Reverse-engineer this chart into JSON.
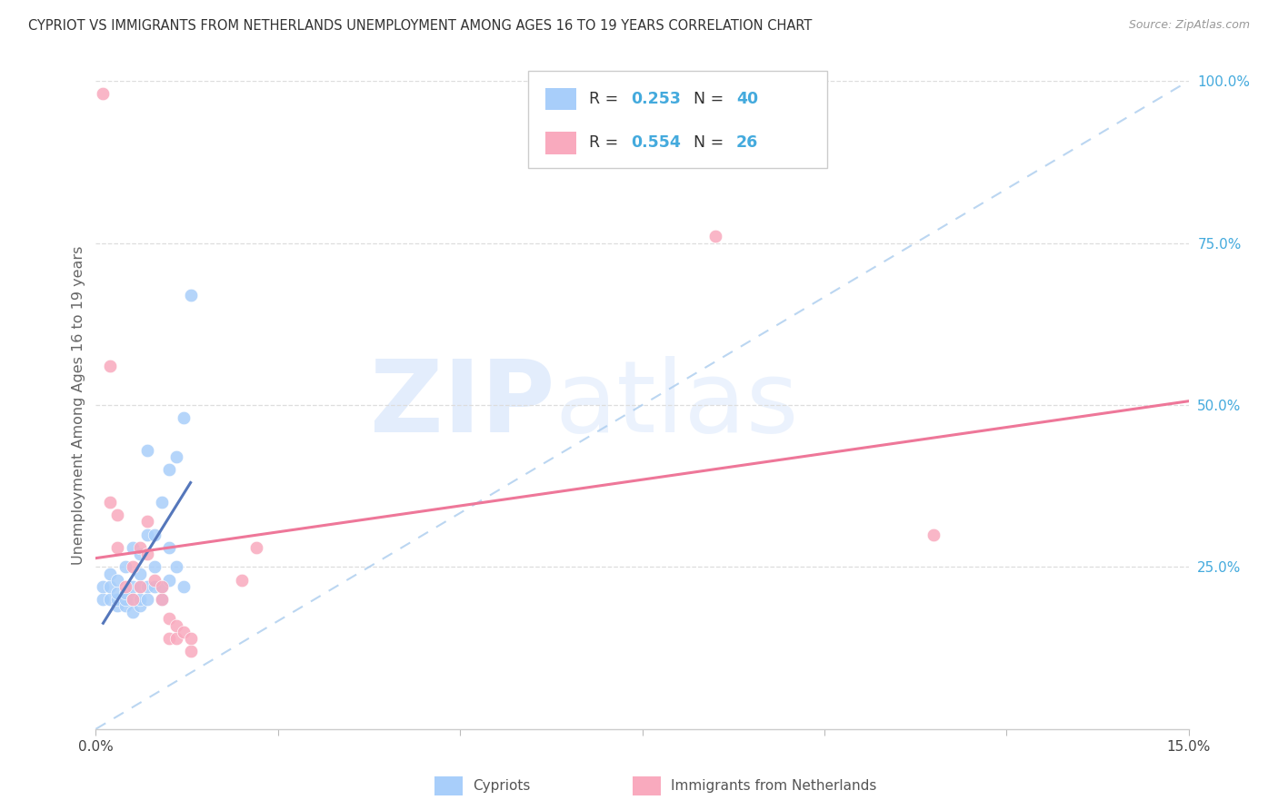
{
  "title": "CYPRIOT VS IMMIGRANTS FROM NETHERLANDS UNEMPLOYMENT AMONG AGES 16 TO 19 YEARS CORRELATION CHART",
  "source": "Source: ZipAtlas.com",
  "ylabel": "Unemployment Among Ages 16 to 19 years",
  "xlim": [
    0.0,
    0.15
  ],
  "ylim": [
    0.0,
    1.0
  ],
  "xtick_positions": [
    0.0,
    0.025,
    0.05,
    0.075,
    0.1,
    0.125,
    0.15
  ],
  "yticks_right": [
    0.25,
    0.5,
    0.75,
    1.0
  ],
  "ytick_right_labels": [
    "25.0%",
    "50.0%",
    "75.0%",
    "100.0%"
  ],
  "R_cypriot": 0.253,
  "N_cypriot": 40,
  "R_netherlands": 0.554,
  "N_netherlands": 26,
  "legend_label1": "Cypriots",
  "legend_label2": "Immigrants from Netherlands",
  "color_blue": "#A8CEFA",
  "color_pink": "#F9AABE",
  "color_blue_line": "#5577BB",
  "color_pink_line": "#EE7799",
  "color_blue_text": "#44AADD",
  "color_gray_diag": "#AACCEE",
  "cypriot_x": [
    0.001,
    0.001,
    0.002,
    0.002,
    0.002,
    0.003,
    0.003,
    0.003,
    0.003,
    0.004,
    0.004,
    0.004,
    0.004,
    0.005,
    0.005,
    0.005,
    0.005,
    0.006,
    0.006,
    0.006,
    0.006,
    0.006,
    0.007,
    0.007,
    0.007,
    0.007,
    0.008,
    0.008,
    0.008,
    0.009,
    0.009,
    0.009,
    0.01,
    0.01,
    0.01,
    0.011,
    0.011,
    0.012,
    0.012,
    0.013
  ],
  "cypriot_y": [
    0.2,
    0.22,
    0.2,
    0.22,
    0.24,
    0.19,
    0.2,
    0.21,
    0.23,
    0.19,
    0.2,
    0.21,
    0.25,
    0.18,
    0.2,
    0.22,
    0.28,
    0.19,
    0.2,
    0.22,
    0.24,
    0.27,
    0.2,
    0.22,
    0.3,
    0.43,
    0.22,
    0.25,
    0.3,
    0.2,
    0.22,
    0.35,
    0.23,
    0.28,
    0.4,
    0.25,
    0.42,
    0.22,
    0.48,
    0.67
  ],
  "netherlands_x": [
    0.001,
    0.002,
    0.002,
    0.003,
    0.003,
    0.004,
    0.005,
    0.005,
    0.006,
    0.006,
    0.007,
    0.007,
    0.008,
    0.009,
    0.009,
    0.01,
    0.01,
    0.011,
    0.011,
    0.012,
    0.013,
    0.013,
    0.02,
    0.022,
    0.085,
    0.115
  ],
  "netherlands_y": [
    0.98,
    0.35,
    0.56,
    0.28,
    0.33,
    0.22,
    0.2,
    0.25,
    0.22,
    0.28,
    0.27,
    0.32,
    0.23,
    0.2,
    0.22,
    0.14,
    0.17,
    0.14,
    0.16,
    0.15,
    0.12,
    0.14,
    0.23,
    0.28,
    0.76,
    0.3
  ],
  "watermark_zip_color": "#C8DCFA",
  "watermark_atlas_color": "#C8DCFA"
}
